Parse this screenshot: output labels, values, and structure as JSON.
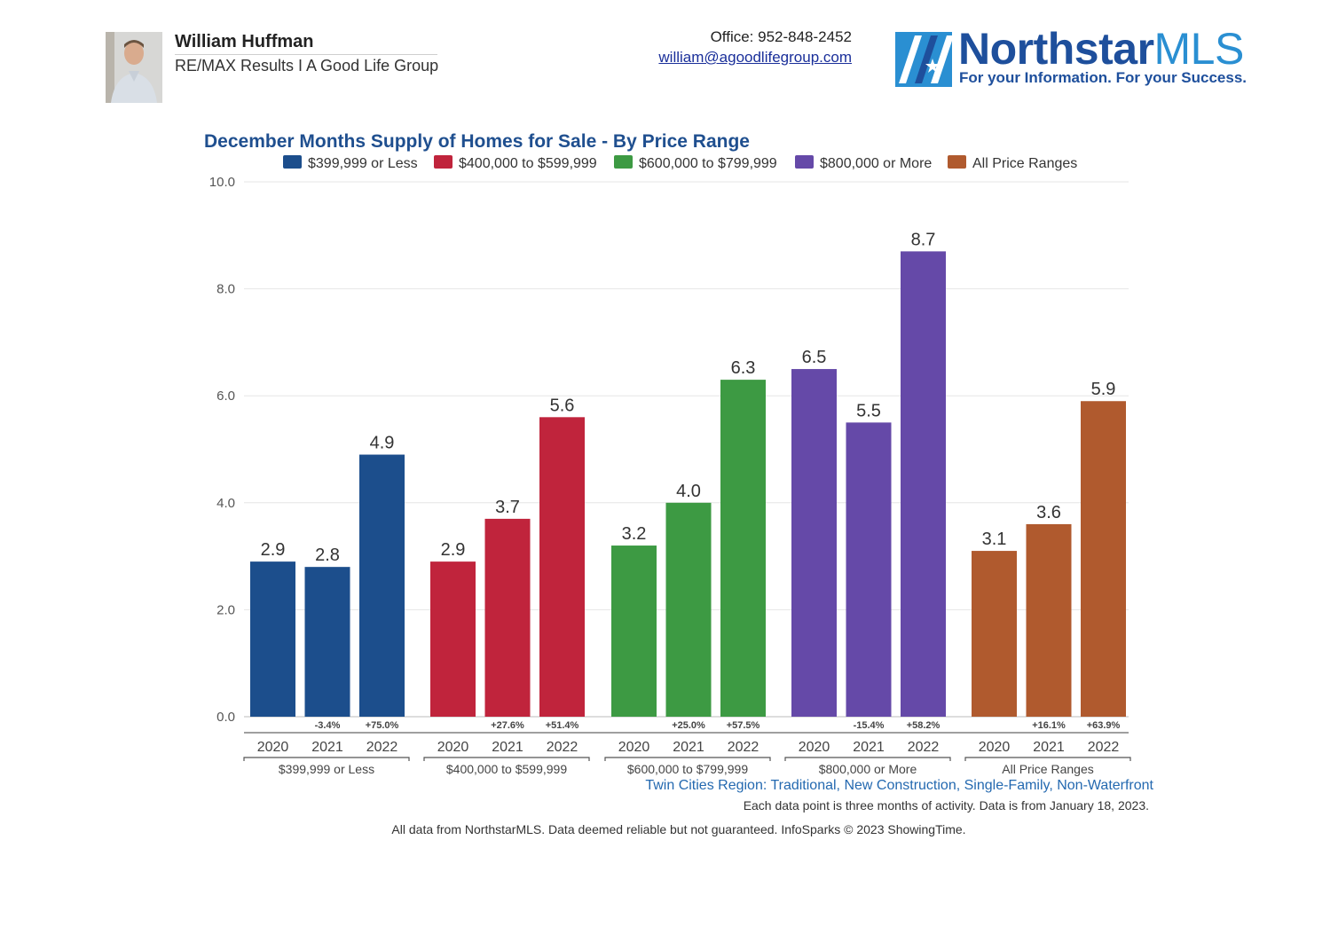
{
  "header": {
    "agent_name": "William Huffman",
    "agent_company": "RE/MAX Results I A Good Life Group",
    "office": "Office: 952-848-2452",
    "email": "william@agoodlifegroup.com",
    "logo_name_main": "Northstar",
    "logo_name_accent": "MLS",
    "logo_tagline": "For your Information. For your Success."
  },
  "colors": {
    "title": "#1f4f8f",
    "subtitle_text": "#2469b0",
    "axis_text": "#555555",
    "grid": "#e6e6e6"
  },
  "chart_data": {
    "type": "bar",
    "title": "December Months Supply of Homes for Sale - By Price Range",
    "ylim": [
      0,
      10
    ],
    "yticks": [
      "0.0",
      "2.0",
      "4.0",
      "6.0",
      "8.0",
      "10.0"
    ],
    "grid": true,
    "legend_position": "top",
    "years": [
      "2020",
      "2021",
      "2022"
    ],
    "groups": [
      {
        "name": "$399,999 or Less",
        "color": "#1c4e8c",
        "values": [
          2.9,
          2.8,
          4.9
        ],
        "value_labels": [
          "2.9",
          "2.8",
          "4.9"
        ],
        "changes": [
          "",
          "-3.4%",
          "+75.0%"
        ]
      },
      {
        "name": "$400,000 to $599,999",
        "color": "#c0243c",
        "values": [
          2.9,
          3.7,
          5.6
        ],
        "value_labels": [
          "2.9",
          "3.7",
          "5.6"
        ],
        "changes": [
          "",
          "+27.6%",
          "+51.4%"
        ]
      },
      {
        "name": "$600,000 to $799,999",
        "color": "#3d9a43",
        "values": [
          3.2,
          4.0,
          6.3
        ],
        "value_labels": [
          "3.2",
          "4.0",
          "6.3"
        ],
        "changes": [
          "",
          "+25.0%",
          "+57.5%"
        ]
      },
      {
        "name": "$800,000 or More",
        "color": "#6549a8",
        "values": [
          6.5,
          5.5,
          8.7
        ],
        "value_labels": [
          "6.5",
          "5.5",
          "8.7"
        ],
        "changes": [
          "",
          "-15.4%",
          "+58.2%"
        ]
      },
      {
        "name": "All Price Ranges",
        "color": "#b05a2e",
        "values": [
          3.1,
          3.6,
          5.9
        ],
        "value_labels": [
          "3.1",
          "3.6",
          "5.9"
        ],
        "changes": [
          "",
          "+16.1%",
          "+63.9%"
        ]
      }
    ],
    "region_note": "Twin Cities Region: Traditional, New Construction, Single-Family, Non-Waterfront",
    "activity_note": "Each data point is three months of activity. Data is from January 18, 2023.",
    "source_note": "All data from NorthstarMLS. Data deemed reliable but not guaranteed. InfoSparks © 2023 ShowingTime."
  }
}
